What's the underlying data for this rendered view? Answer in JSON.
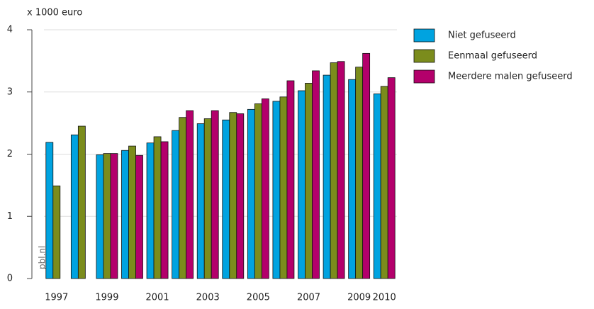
{
  "chart_data": {
    "type": "bar",
    "y_label": "x 1000 euro",
    "watermark": "pbl.nl",
    "categories": [
      "1997",
      null,
      "1999",
      null,
      "2001",
      null,
      "2003",
      null,
      "2005",
      null,
      "2007",
      null,
      "2009",
      "2010"
    ],
    "series": [
      {
        "name": "Niet gefuseerd",
        "color": "#00a3e0",
        "values": [
          2.19,
          2.31,
          1.99,
          2.06,
          2.18,
          2.38,
          2.49,
          2.55,
          2.72,
          2.85,
          3.02,
          3.27,
          3.2,
          2.97
        ]
      },
      {
        "name": "Eenmaal gefuseerd",
        "color": "#7b8c1c",
        "values": [
          1.49,
          2.45,
          2.01,
          2.13,
          2.28,
          2.59,
          2.57,
          2.67,
          2.81,
          2.92,
          3.14,
          3.47,
          3.4,
          3.09
        ]
      },
      {
        "name": "Meerdere malen gefuseerd",
        "color": "#b3006b",
        "values": [
          null,
          null,
          2.01,
          1.98,
          2.2,
          2.7,
          2.7,
          2.65,
          2.89,
          3.18,
          3.34,
          3.49,
          3.62,
          3.23
        ]
      }
    ],
    "ylim": [
      0,
      4
    ],
    "yticks": [
      0,
      1,
      2,
      3,
      4
    ],
    "grid": true,
    "legend": "right"
  }
}
